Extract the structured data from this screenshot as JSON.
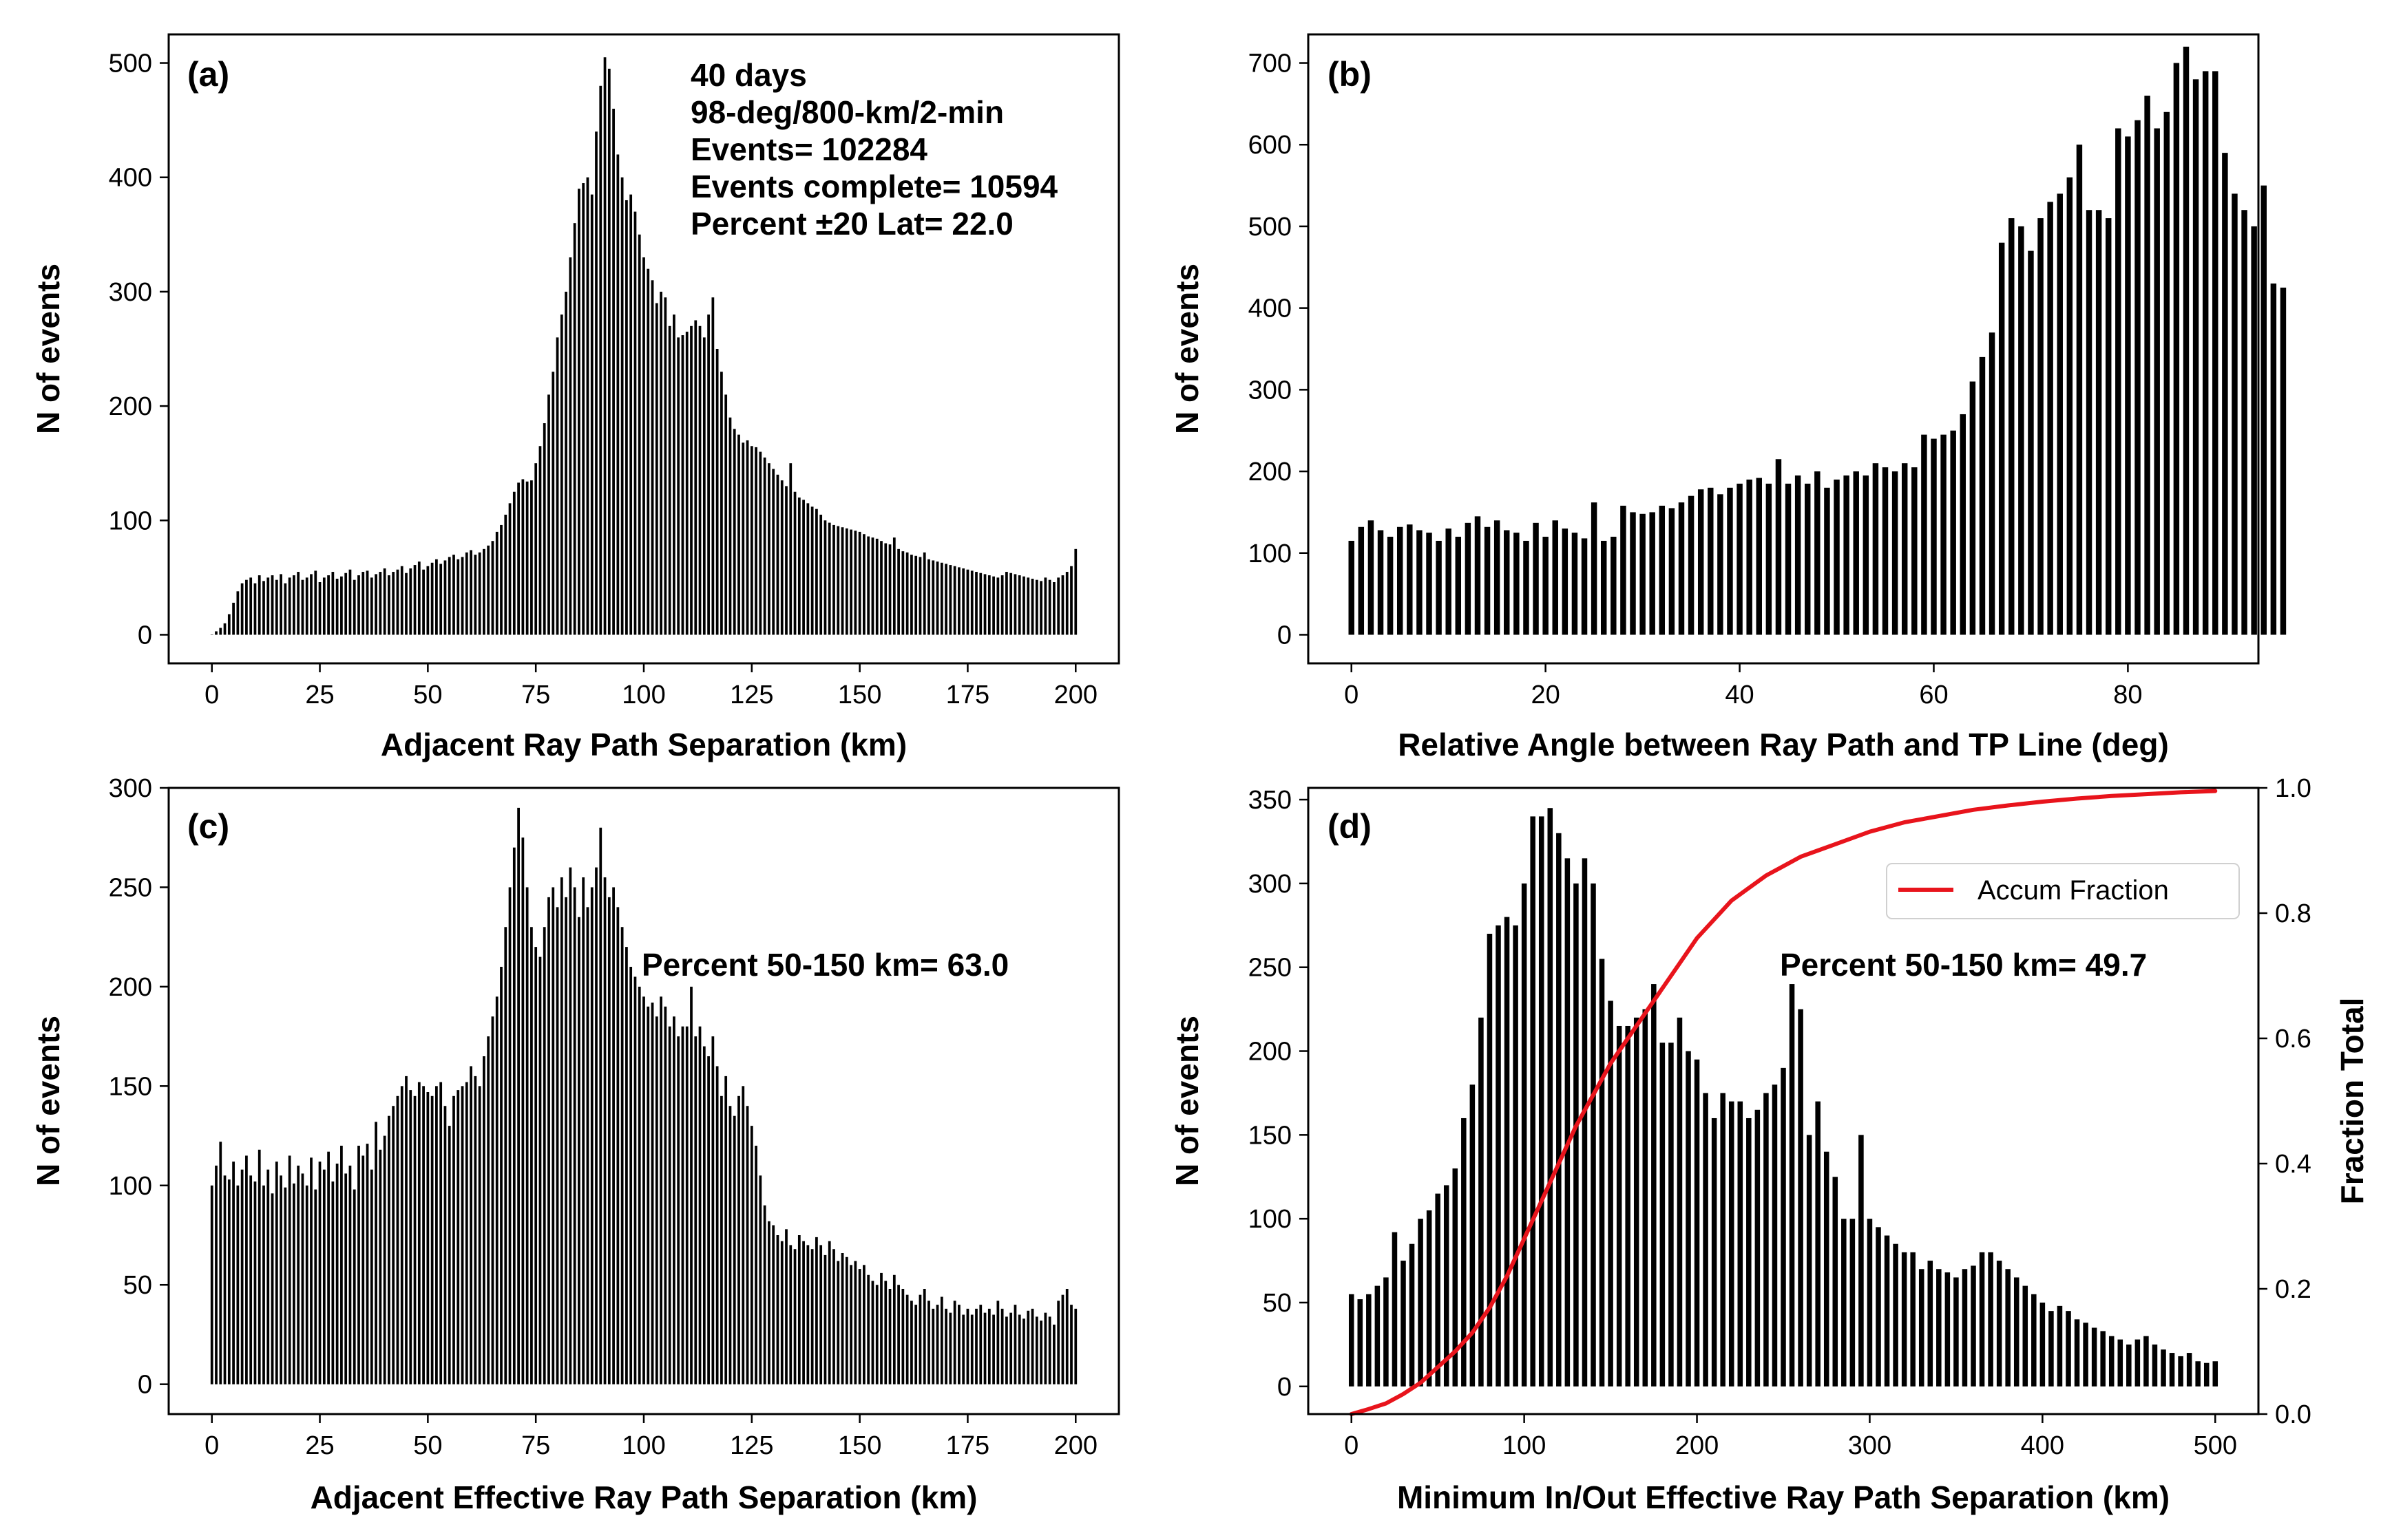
{
  "figure": {
    "colors": {
      "bars": "#000000",
      "curve": "#e8141c",
      "frame": "#000000",
      "background": "#ffffff"
    }
  },
  "chart_data": [
    {
      "id": "a",
      "type": "bar",
      "panel_label": "(a)",
      "xlabel": "Adjacent Ray Path Separation (km)",
      "ylabel": "N of events",
      "xlim": [
        -10,
        210
      ],
      "ylim": [
        -25,
        525
      ],
      "xticks": [
        0,
        25,
        50,
        75,
        100,
        125,
        150,
        175,
        200
      ],
      "yticks": [
        0,
        100,
        200,
        300,
        400,
        500
      ],
      "bar_width": 0.6,
      "annotations": [
        "40 days",
        "98-deg/800-km/2-min",
        "Events= 102284",
        "Events complete= 10594",
        "Percent ±20 Lat= 22.0"
      ],
      "x_start": 0,
      "x_step": 1,
      "values": [
        0,
        3,
        6,
        10,
        18,
        28,
        38,
        45,
        48,
        50,
        45,
        52,
        47,
        50,
        52,
        48,
        53,
        45,
        50,
        52,
        55,
        48,
        50,
        53,
        56,
        46,
        50,
        52,
        55,
        49,
        51,
        54,
        57,
        48,
        52,
        55,
        56,
        50,
        53,
        55,
        58,
        52,
        55,
        57,
        60,
        54,
        58,
        61,
        64,
        57,
        60,
        63,
        66,
        62,
        65,
        68,
        70,
        66,
        68,
        72,
        74,
        70,
        72,
        75,
        78,
        82,
        90,
        96,
        105,
        115,
        125,
        133,
        136,
        134,
        135,
        150,
        165,
        185,
        210,
        230,
        260,
        280,
        300,
        330,
        360,
        390,
        395,
        400,
        385,
        440,
        480,
        505,
        495,
        460,
        420,
        400,
        380,
        385,
        370,
        350,
        330,
        320,
        310,
        290,
        300,
        295,
        270,
        280,
        260,
        262,
        265,
        270,
        275,
        270,
        260,
        280,
        295,
        250,
        230,
        210,
        190,
        180,
        175,
        168,
        170,
        165,
        164,
        160,
        155,
        150,
        145,
        140,
        135,
        130,
        150,
        125,
        120,
        118,
        115,
        112,
        110,
        105,
        100,
        98,
        96,
        95,
        94,
        93,
        92,
        91,
        90,
        88,
        86,
        85,
        84,
        82,
        80,
        79,
        85,
        75,
        73,
        72,
        70,
        69,
        68,
        72,
        66,
        65,
        64,
        63,
        62,
        61,
        60,
        59,
        58,
        57,
        56,
        55,
        54,
        53,
        52,
        51,
        50,
        52,
        55,
        54,
        53,
        52,
        51,
        50,
        49,
        48,
        47,
        50,
        48,
        46,
        50,
        52,
        55,
        60,
        75
      ]
    },
    {
      "id": "b",
      "type": "bar",
      "panel_label": "(b)",
      "xlabel": "Relative Angle between Ray Path and TP Line (deg)",
      "ylabel": "N of events",
      "xlim": [
        -4.45,
        93.45
      ],
      "ylim": [
        -35,
        735
      ],
      "xticks": [
        0,
        20,
        40,
        60,
        80
      ],
      "yticks": [
        0,
        100,
        200,
        300,
        400,
        500,
        600,
        700
      ],
      "bar_width": 0.6,
      "x_start": 0,
      "x_step": 1,
      "values": [
        115,
        132,
        140,
        128,
        120,
        132,
        135,
        128,
        125,
        115,
        130,
        120,
        137,
        145,
        132,
        140,
        128,
        125,
        115,
        137,
        120,
        140,
        130,
        125,
        118,
        162,
        115,
        120,
        158,
        150,
        148,
        150,
        158,
        155,
        162,
        170,
        178,
        180,
        172,
        180,
        185,
        190,
        192,
        185,
        215,
        185,
        195,
        185,
        200,
        180,
        190,
        195,
        200,
        195,
        210,
        205,
        200,
        210,
        205,
        245,
        240,
        245,
        250,
        270,
        310,
        340,
        370,
        480,
        510,
        500,
        470,
        510,
        530,
        540,
        560,
        600,
        520,
        520,
        510,
        620,
        610,
        630,
        660,
        620,
        640,
        700,
        720,
        680,
        690,
        690,
        590,
        540,
        520,
        500,
        550,
        430,
        425
      ]
    },
    {
      "id": "c",
      "type": "bar",
      "panel_label": "(c)",
      "xlabel": "Adjacent Effective Ray Path Separation (km)",
      "ylabel": "N of events",
      "xlim": [
        -10,
        210
      ],
      "ylim": [
        -15,
        300
      ],
      "xticks": [
        0,
        25,
        50,
        75,
        100,
        125,
        150,
        175,
        200
      ],
      "yticks": [
        0,
        50,
        100,
        150,
        200,
        250,
        300
      ],
      "bar_width": 0.6,
      "annotations": [
        "Percent 50-150 km= 63.0"
      ],
      "x_start": 0,
      "x_step": 1,
      "values": [
        100,
        110,
        122,
        105,
        103,
        112,
        100,
        108,
        115,
        105,
        102,
        118,
        100,
        108,
        96,
        112,
        105,
        99,
        115,
        101,
        110,
        106,
        100,
        114,
        98,
        112,
        108,
        117,
        102,
        111,
        120,
        106,
        110,
        98,
        120,
        115,
        121,
        108,
        132,
        118,
        125,
        135,
        140,
        145,
        150,
        155,
        148,
        145,
        152,
        150,
        147,
        145,
        150,
        152,
        140,
        130,
        145,
        148,
        150,
        152,
        160,
        155,
        150,
        165,
        175,
        185,
        195,
        210,
        230,
        250,
        270,
        290,
        275,
        250,
        230,
        220,
        215,
        230,
        245,
        250,
        240,
        255,
        245,
        260,
        250,
        235,
        255,
        240,
        250,
        260,
        280,
        255,
        245,
        250,
        240,
        230,
        220,
        210,
        205,
        200,
        195,
        190,
        192,
        185,
        195,
        190,
        180,
        185,
        175,
        180,
        180,
        200,
        175,
        180,
        170,
        165,
        175,
        160,
        145,
        155,
        140,
        135,
        145,
        150,
        140,
        130,
        120,
        105,
        90,
        82,
        80,
        75,
        72,
        78,
        70,
        68,
        75,
        72,
        70,
        68,
        74,
        70,
        65,
        72,
        68,
        62,
        66,
        64,
        60,
        62,
        58,
        60,
        55,
        52,
        50,
        56,
        52,
        48,
        55,
        50,
        48,
        45,
        42,
        40,
        45,
        48,
        42,
        38,
        40,
        44,
        38,
        36,
        42,
        40,
        35,
        38,
        35,
        38,
        40,
        36,
        38,
        35,
        42,
        38,
        34,
        36,
        40,
        35,
        33,
        37,
        38,
        34,
        32,
        36,
        34,
        30,
        42,
        45,
        48,
        40,
        38
      ]
    },
    {
      "id": "d",
      "type": "bar+line",
      "panel_label": "(d)",
      "xlabel": "Minimum In/Out Effective Ray Path Separation (km)",
      "ylabel": "N of events",
      "y2label": "Fraction Total",
      "xlim": [
        -25,
        525
      ],
      "ylim": [
        -16.5,
        357
      ],
      "y2lim": [
        0.0,
        1.0
      ],
      "xticks": [
        0,
        100,
        200,
        300,
        400,
        500
      ],
      "yticks": [
        0,
        50,
        100,
        150,
        200,
        250,
        300,
        350
      ],
      "y2ticks": [
        0.0,
        0.2,
        0.4,
        0.6,
        0.8,
        1.0
      ],
      "bar_width": 3.0,
      "annotations": [
        "Percent 50-150 km= 49.7"
      ],
      "legend": [
        "Accum Fraction"
      ],
      "x_start": 0,
      "x_step": 5,
      "values": [
        55,
        52,
        55,
        60,
        65,
        92,
        75,
        85,
        100,
        105,
        115,
        120,
        130,
        160,
        180,
        220,
        270,
        275,
        280,
        275,
        300,
        340,
        340,
        345,
        330,
        315,
        300,
        315,
        300,
        255,
        230,
        215,
        215,
        220,
        225,
        240,
        205,
        205,
        220,
        200,
        195,
        175,
        160,
        175,
        170,
        170,
        160,
        165,
        175,
        180,
        190,
        240,
        225,
        150,
        170,
        140,
        125,
        100,
        100,
        150,
        100,
        95,
        90,
        85,
        80,
        80,
        70,
        75,
        70,
        68,
        65,
        70,
        72,
        80,
        80,
        75,
        70,
        65,
        60,
        55,
        50,
        45,
        48,
        45,
        40,
        38,
        35,
        33,
        30,
        28,
        25,
        28,
        30,
        25,
        22,
        20,
        18,
        20,
        15,
        14,
        15
      ],
      "line": {
        "name": "Accum Fraction",
        "x": [
          0,
          10,
          20,
          30,
          40,
          50,
          60,
          70,
          80,
          90,
          100,
          110,
          120,
          130,
          140,
          150,
          160,
          170,
          180,
          190,
          200,
          210,
          220,
          230,
          240,
          250,
          260,
          270,
          280,
          290,
          300,
          320,
          340,
          360,
          380,
          400,
          420,
          440,
          460,
          480,
          500
        ],
        "y": [
          0.0,
          0.008,
          0.017,
          0.032,
          0.05,
          0.075,
          0.1,
          0.13,
          0.17,
          0.22,
          0.28,
          0.34,
          0.4,
          0.46,
          0.51,
          0.56,
          0.6,
          0.64,
          0.68,
          0.72,
          0.76,
          0.79,
          0.82,
          0.84,
          0.86,
          0.875,
          0.89,
          0.9,
          0.91,
          0.92,
          0.93,
          0.945,
          0.955,
          0.965,
          0.972,
          0.978,
          0.983,
          0.987,
          0.99,
          0.993,
          0.995
        ]
      }
    }
  ]
}
